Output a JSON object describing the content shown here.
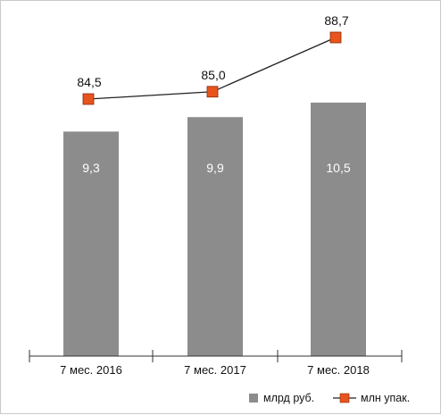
{
  "chart_data": {
    "type": "bar",
    "categories": [
      "7 мес. 2016",
      "7 мес. 2017",
      "7 мес. 2018"
    ],
    "series": [
      {
        "name": "млрд руб.",
        "type": "bar",
        "values": [
          9.3,
          9.9,
          10.5
        ],
        "labels": [
          "9,3",
          "9,9",
          "10,5"
        ],
        "color": "#8c8c8c"
      },
      {
        "name": "млн упак.",
        "type": "line",
        "values": [
          84.5,
          85.0,
          88.7
        ],
        "labels": [
          "84,5",
          "85,0",
          "88,7"
        ],
        "color": "#e8541e",
        "line_color": "#222222"
      }
    ],
    "title": "",
    "xlabel": "",
    "ylabel": "",
    "grid": false,
    "legend": "bottom-right"
  }
}
